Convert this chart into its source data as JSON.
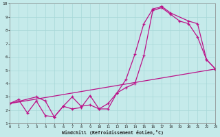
{
  "xlabel": "Windchill (Refroidissement éolien,°C)",
  "xlim": [
    0,
    23
  ],
  "ylim": [
    1,
    10
  ],
  "xticks": [
    0,
    1,
    2,
    3,
    4,
    5,
    6,
    7,
    8,
    9,
    10,
    11,
    12,
    13,
    14,
    15,
    16,
    17,
    18,
    19,
    20,
    21,
    22,
    23
  ],
  "yticks": [
    1,
    2,
    3,
    4,
    5,
    6,
    7,
    8,
    9,
    10
  ],
  "bg_color": "#c5eaea",
  "line_color": "#bb1188",
  "line1": {
    "x": [
      0,
      1,
      2,
      3,
      4,
      5,
      6,
      7,
      8,
      9,
      10,
      11,
      12,
      13,
      14,
      15,
      16,
      17,
      18,
      19,
      20,
      21,
      22,
      23
    ],
    "y": [
      2.5,
      2.8,
      1.8,
      2.7,
      1.6,
      1.5,
      2.3,
      2.1,
      2.2,
      3.1,
      2.1,
      2.1,
      3.3,
      3.7,
      4.0,
      6.1,
      9.5,
      9.7,
      9.2,
      8.7,
      8.5,
      7.5,
      5.8,
      5.1
    ]
  },
  "line2": {
    "x": [
      0,
      3,
      4,
      5,
      6,
      7,
      8,
      9,
      10,
      11,
      12,
      13,
      14,
      15,
      16,
      17,
      18,
      20,
      21,
      22,
      23
    ],
    "y": [
      2.5,
      3.0,
      2.7,
      1.5,
      2.3,
      3.0,
      2.3,
      2.4,
      2.1,
      2.5,
      3.3,
      4.3,
      6.2,
      8.5,
      9.6,
      9.8,
      9.3,
      8.7,
      8.5,
      5.8,
      5.1
    ]
  },
  "line3": {
    "x": [
      0,
      23
    ],
    "y": [
      2.5,
      5.1
    ]
  },
  "grid_color": "#a8d8d8",
  "marker": "+"
}
